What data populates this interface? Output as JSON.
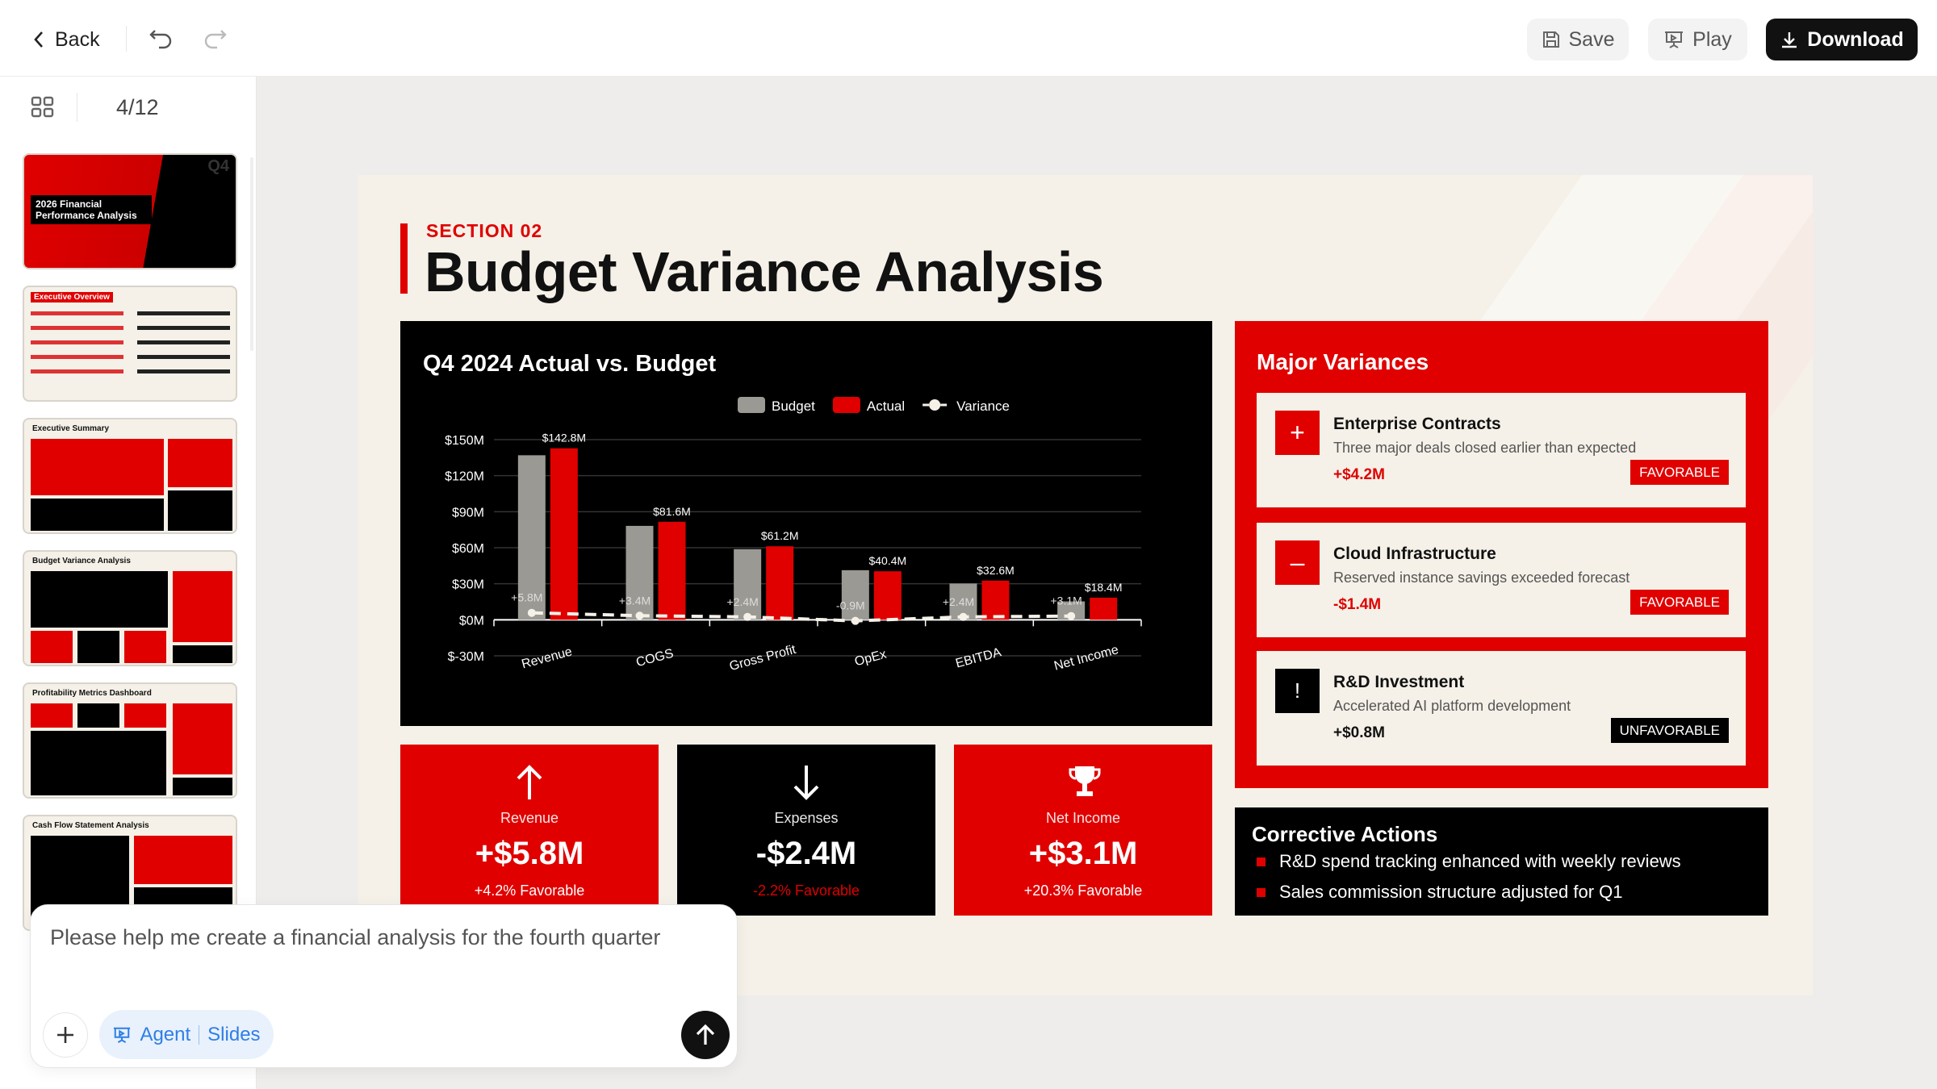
{
  "topbar": {
    "back": "Back",
    "save": "Save",
    "play": "Play",
    "download": "Download"
  },
  "sidebar": {
    "page_indicator": "4/12",
    "thumbnails": [
      {
        "title": "2026 Financial Performance Analysis",
        "tag": "Q4"
      },
      {
        "title": "Executive Overview"
      },
      {
        "title": "Executive Summary"
      },
      {
        "title": "Budget Variance Analysis"
      },
      {
        "title": "Profitability Metrics Dashboard"
      },
      {
        "title": "Cash Flow Statement Analysis"
      }
    ]
  },
  "slide": {
    "section": "SECTION 02",
    "title": "Budget Variance Analysis",
    "kpis": [
      {
        "icon": "arrow-up-icon",
        "label": "Revenue",
        "value": "+$5.8M",
        "sub": "+4.2% Favorable"
      },
      {
        "icon": "arrow-down-icon",
        "label": "Expenses",
        "value": "-$2.4M",
        "sub": "-2.2% Favorable"
      },
      {
        "icon": "trophy-icon",
        "label": "Net Income",
        "value": "+$3.1M",
        "sub": "+20.3% Favorable"
      }
    ],
    "major_variances": {
      "title": "Major Variances",
      "items": [
        {
          "icon": "plus-icon",
          "symbol": "+",
          "title": "Enterprise Contracts",
          "desc": "Three major deals closed earlier than expected",
          "value": "+$4.2M",
          "badge": "FAVORABLE"
        },
        {
          "icon": "minus-icon",
          "symbol": "–",
          "title": "Cloud Infrastructure",
          "desc": "Reserved instance savings exceeded forecast",
          "value": "-$1.4M",
          "badge": "FAVORABLE"
        },
        {
          "icon": "exclamation-icon",
          "symbol": "!",
          "title": "R&D Investment",
          "desc": "Accelerated AI platform development",
          "value": "+$0.8M",
          "badge": "UNFAVORABLE"
        }
      ]
    },
    "corrective": {
      "title": "Corrective Actions",
      "items": [
        "R&D spend tracking enhanced with weekly reviews",
        "Sales commission structure adjusted for Q1"
      ]
    }
  },
  "chart_data": {
    "type": "bar",
    "title": "Q4 2024 Actual vs. Budget",
    "categories": [
      "Revenue",
      "COGS",
      "Gross Profit",
      "OpEx",
      "EBITDA",
      "Net Income"
    ],
    "series": [
      {
        "name": "Budget",
        "type": "bar",
        "color": "#9a9994",
        "values": [
          137.0,
          78.2,
          58.8,
          41.3,
          30.2,
          15.3
        ]
      },
      {
        "name": "Actual",
        "type": "bar",
        "color": "#e00000",
        "values": [
          142.8,
          81.6,
          61.2,
          40.4,
          32.6,
          18.4
        ],
        "labels": [
          "$142.8M",
          "$81.6M",
          "$61.2M",
          "$40.4M",
          "$32.6M",
          "$18.4M"
        ]
      },
      {
        "name": "Variance",
        "type": "line",
        "style": "dashed",
        "color": "#f5f1e8",
        "values": [
          5.8,
          3.4,
          2.4,
          -0.9,
          2.4,
          3.1
        ],
        "labels": [
          "+5.8M",
          "+3.4M",
          "+2.4M",
          "-0.9M",
          "+2.4M",
          "+3.1M"
        ]
      }
    ],
    "yticks": [
      "$150M",
      "$120M",
      "$90M",
      "$60M",
      "$30M",
      "$0M",
      "$-30M"
    ],
    "ylim": [
      -30,
      150
    ],
    "grid": true,
    "legend": "top-center"
  },
  "chat": {
    "input_value": "Please help me create a financial analysis for the fourth quarter",
    "agent": "Agent",
    "mode": "Slides"
  },
  "colors": {
    "accent": "#e00000",
    "dark": "#000000",
    "cream": "#f5f1e8"
  }
}
